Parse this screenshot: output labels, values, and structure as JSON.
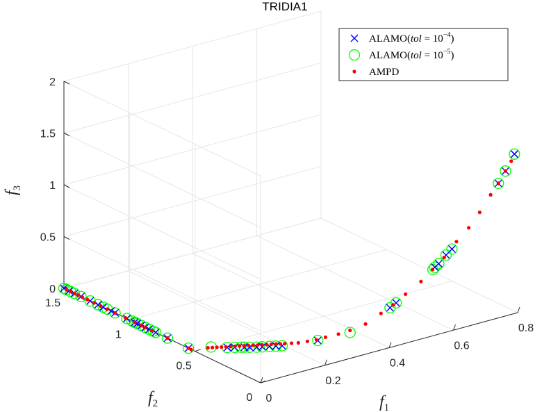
{
  "chart_data": {
    "type": "scatter3d",
    "title": "TRIDIA1",
    "xlabel": "f",
    "xlabel_sub": "1",
    "ylabel": "f",
    "ylabel_sub": "2",
    "zlabel": "f",
    "zlabel_sub": "3",
    "xlim": [
      0,
      0.8
    ],
    "ylim": [
      0,
      1.5
    ],
    "zlim": [
      0,
      2
    ],
    "xticks": [
      0,
      0.2,
      0.4,
      0.6,
      0.8
    ],
    "xtick_labels": [
      "0",
      "0.2",
      "0.4",
      "0.6",
      "0.8"
    ],
    "yticks": [
      0,
      0.5,
      1,
      1.5
    ],
    "ytick_labels": [
      "0",
      "0.5",
      "1",
      "1.5"
    ],
    "zticks": [
      0,
      0.5,
      1,
      1.5,
      2
    ],
    "ztick_labels": [
      "0",
      "0.5",
      "1",
      "1.5",
      "2"
    ],
    "grid": true,
    "legend_position": "top-right",
    "series": [
      {
        "name": "ALAMO(tol = 10^-4)",
        "legend_pre": "ALAMO(",
        "legend_var": "tol",
        "legend_eq": " = 10",
        "legend_exp": "−4",
        "legend_post": ")",
        "marker": "x",
        "color": "#0000ff",
        "points": [
          [
            0.0,
            1.5,
            0.0
          ],
          [
            0.0,
            1.46,
            0.0
          ],
          [
            0.0,
            1.42,
            0.0
          ],
          [
            0.0,
            1.37,
            0.0
          ],
          [
            0.0,
            1.3,
            0.0
          ],
          [
            0.0,
            1.24,
            0.0
          ],
          [
            0.0,
            1.2,
            0.0
          ],
          [
            0.0,
            1.14,
            0.0
          ],
          [
            0.0,
            1.11,
            0.0
          ],
          [
            0.0,
            1.02,
            0.0
          ],
          [
            0.0,
            0.96,
            0.0
          ],
          [
            0.0,
            0.94,
            0.0
          ],
          [
            0.0,
            0.91,
            0.0
          ],
          [
            0.0,
            0.88,
            0.0
          ],
          [
            0.0,
            0.85,
            0.0
          ],
          [
            0.0,
            0.8,
            0.0
          ],
          [
            0.0,
            0.71,
            0.0
          ],
          [
            0.0,
            0.55,
            0.0
          ],
          [
            0.08,
            0.45,
            0.0
          ],
          [
            0.095,
            0.43,
            0.0
          ],
          [
            0.115,
            0.405,
            0.0
          ],
          [
            0.125,
            0.39,
            0.0
          ],
          [
            0.14,
            0.372,
            0.0
          ],
          [
            0.152,
            0.36,
            0.0
          ],
          [
            0.168,
            0.344,
            0.0
          ],
          [
            0.182,
            0.33,
            0.0
          ],
          [
            0.196,
            0.316,
            0.0
          ],
          [
            0.28,
            0.25,
            0.02
          ],
          [
            0.46,
            0.14,
            0.25
          ],
          [
            0.475,
            0.13,
            0.29
          ],
          [
            0.575,
            0.08,
            0.58
          ],
          [
            0.585,
            0.075,
            0.61
          ],
          [
            0.605,
            0.068,
            0.68
          ],
          [
            0.62,
            0.06,
            0.73
          ],
          [
            0.74,
            0.0,
            1.3
          ],
          [
            0.762,
            0.0,
            1.4
          ],
          [
            0.79,
            0.0,
            1.54
          ],
          [
            0.79,
            0.0,
            1.54
          ]
        ]
      },
      {
        "name": "ALAMO(tol = 10^-5)",
        "legend_pre": "ALAMO(",
        "legend_var": "tol",
        "legend_eq": " = 10",
        "legend_exp": "−5",
        "legend_post": ")",
        "marker": "o",
        "color": "#00ff00",
        "points": [
          [
            0.0,
            1.5,
            0.0
          ],
          [
            0.0,
            1.48,
            0.0
          ],
          [
            0.0,
            1.45,
            0.0
          ],
          [
            0.0,
            1.42,
            0.0
          ],
          [
            0.0,
            1.37,
            0.0
          ],
          [
            0.0,
            1.3,
            0.0
          ],
          [
            0.0,
            1.24,
            0.0
          ],
          [
            0.0,
            1.2,
            0.0
          ],
          [
            0.0,
            1.17,
            0.0
          ],
          [
            0.0,
            1.11,
            0.0
          ],
          [
            0.0,
            1.02,
            0.0
          ],
          [
            0.0,
            0.98,
            0.0
          ],
          [
            0.0,
            0.96,
            0.0
          ],
          [
            0.0,
            0.94,
            0.0
          ],
          [
            0.0,
            0.91,
            0.0
          ],
          [
            0.0,
            0.88,
            0.0
          ],
          [
            0.0,
            0.85,
            0.0
          ],
          [
            0.0,
            0.82,
            0.0
          ],
          [
            0.0,
            0.8,
            0.0
          ],
          [
            0.0,
            0.71,
            0.0
          ],
          [
            0.0,
            0.55,
            0.0
          ],
          [
            0.05,
            0.5,
            0.0
          ],
          [
            0.08,
            0.45,
            0.0
          ],
          [
            0.095,
            0.43,
            0.0
          ],
          [
            0.108,
            0.415,
            0.0
          ],
          [
            0.115,
            0.405,
            0.0
          ],
          [
            0.125,
            0.39,
            0.0
          ],
          [
            0.14,
            0.372,
            0.0
          ],
          [
            0.152,
            0.36,
            0.0
          ],
          [
            0.168,
            0.344,
            0.0
          ],
          [
            0.182,
            0.33,
            0.0
          ],
          [
            0.196,
            0.316,
            0.0
          ],
          [
            0.28,
            0.25,
            0.02
          ],
          [
            0.36,
            0.2,
            0.06
          ],
          [
            0.46,
            0.14,
            0.25
          ],
          [
            0.475,
            0.13,
            0.29
          ],
          [
            0.57,
            0.082,
            0.56
          ],
          [
            0.575,
            0.08,
            0.58
          ],
          [
            0.585,
            0.075,
            0.61
          ],
          [
            0.605,
            0.068,
            0.68
          ],
          [
            0.62,
            0.06,
            0.73
          ],
          [
            0.74,
            0.0,
            1.3
          ],
          [
            0.762,
            0.0,
            1.4
          ],
          [
            0.79,
            0.0,
            1.54
          ]
        ]
      },
      {
        "name": "AMPD",
        "legend_pre": "AMPD",
        "legend_var": "",
        "legend_eq": "",
        "legend_exp": "",
        "legend_post": "",
        "marker": ".",
        "color": "#ff0000",
        "points": [
          [
            0.0,
            1.48,
            0.0
          ],
          [
            0.0,
            1.45,
            0.0
          ],
          [
            0.0,
            1.42,
            0.0
          ],
          [
            0.0,
            1.39,
            0.0
          ],
          [
            0.0,
            1.36,
            0.0
          ],
          [
            0.0,
            1.32,
            0.0
          ],
          [
            0.0,
            1.27,
            0.0
          ],
          [
            0.0,
            1.22,
            0.0
          ],
          [
            0.0,
            1.17,
            0.0
          ],
          [
            0.0,
            1.11,
            0.0
          ],
          [
            0.0,
            1.03,
            0.0
          ],
          [
            0.0,
            0.96,
            0.0
          ],
          [
            0.0,
            0.91,
            0.0
          ],
          [
            0.0,
            0.88,
            0.0
          ],
          [
            0.0,
            0.83,
            0.0
          ],
          [
            0.0,
            0.71,
            0.0
          ],
          [
            0.0,
            0.55,
            0.0
          ],
          [
            0.0,
            0.53,
            0.0
          ],
          [
            0.04,
            0.5,
            0.0
          ],
          [
            0.05,
            0.49,
            0.0
          ],
          [
            0.06,
            0.48,
            0.0
          ],
          [
            0.07,
            0.47,
            0.0
          ],
          [
            0.08,
            0.46,
            0.0
          ],
          [
            0.09,
            0.45,
            0.0
          ],
          [
            0.1,
            0.44,
            0.0
          ],
          [
            0.11,
            0.43,
            0.0
          ],
          [
            0.12,
            0.42,
            0.0
          ],
          [
            0.13,
            0.41,
            0.0
          ],
          [
            0.14,
            0.4,
            0.0
          ],
          [
            0.15,
            0.39,
            0.0
          ],
          [
            0.16,
            0.38,
            0.0
          ],
          [
            0.17,
            0.37,
            0.0
          ],
          [
            0.18,
            0.36,
            0.0
          ],
          [
            0.19,
            0.35,
            0.0
          ],
          [
            0.2,
            0.34,
            0.0
          ],
          [
            0.21,
            0.33,
            0.0
          ],
          [
            0.225,
            0.315,
            0.0
          ],
          [
            0.24,
            0.3,
            0.0
          ],
          [
            0.26,
            0.28,
            0.01
          ],
          [
            0.28,
            0.26,
            0.02
          ],
          [
            0.3,
            0.24,
            0.04
          ],
          [
            0.33,
            0.215,
            0.06
          ],
          [
            0.36,
            0.2,
            0.08
          ],
          [
            0.4,
            0.18,
            0.12
          ],
          [
            0.44,
            0.16,
            0.2
          ],
          [
            0.47,
            0.14,
            0.27
          ],
          [
            0.5,
            0.12,
            0.36
          ],
          [
            0.54,
            0.1,
            0.46
          ],
          [
            0.57,
            0.085,
            0.56
          ],
          [
            0.6,
            0.07,
            0.66
          ],
          [
            0.63,
            0.05,
            0.8
          ],
          [
            0.66,
            0.03,
            0.92
          ],
          [
            0.69,
            0.02,
            1.05
          ],
          [
            0.72,
            0.01,
            1.2
          ],
          [
            0.74,
            0.0,
            1.3
          ],
          [
            0.762,
            0.0,
            1.4
          ],
          [
            0.78,
            0.0,
            1.48
          ]
        ]
      }
    ]
  }
}
